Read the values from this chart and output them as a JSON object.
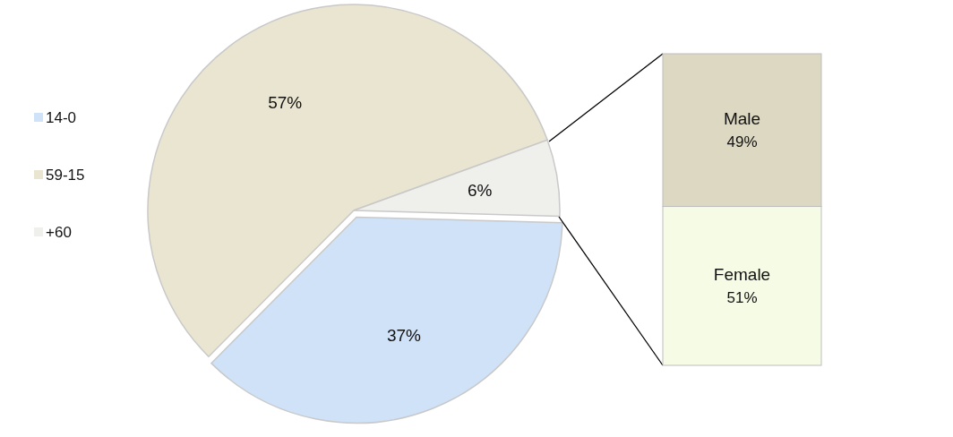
{
  "chart_data": [
    {
      "type": "pie",
      "categories": [
        "14-0",
        "59-15",
        "+60"
      ],
      "values": [
        37,
        57,
        6
      ],
      "colors": [
        "#cfe2f8",
        "#e9e5d1",
        "#efefec"
      ],
      "value_labels": [
        "37%",
        "57%",
        "6%"
      ],
      "legend": "left"
    },
    {
      "type": "bar",
      "stacked": true,
      "categories": [
        null
      ],
      "series": [
        {
          "name": "Female",
          "color": "#f6fbe6",
          "values": [
            51
          ],
          "value_labels": [
            "51%"
          ]
        },
        {
          "name": "Male",
          "color": "#ddd8c2",
          "values": [
            49
          ],
          "value_labels": [
            "49%"
          ]
        }
      ]
    }
  ]
}
